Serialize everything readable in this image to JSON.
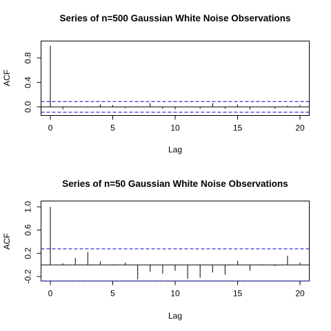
{
  "chart_data": [
    {
      "type": "bar",
      "title": "Series of n=500 Gaussian White Noise Observations",
      "xlabel": "Lag",
      "ylabel": "ACF",
      "x_ticks": [
        "0",
        "5",
        "10",
        "15",
        "20"
      ],
      "y_ticks": [
        "0.0",
        "0.4",
        "0.8"
      ],
      "xlim": [
        0,
        20
      ],
      "ylim": [
        -0.05,
        1.0
      ],
      "ci": 0.088,
      "lags": [
        0,
        1,
        2,
        3,
        4,
        5,
        6,
        7,
        8,
        9,
        10,
        11,
        12,
        13,
        14,
        15,
        16,
        17,
        18,
        19,
        20
      ],
      "values": [
        1.0,
        -0.04,
        0.005,
        -0.01,
        0.04,
        0.03,
        -0.02,
        0.01,
        0.06,
        -0.03,
        -0.04,
        0.005,
        -0.03,
        0.06,
        -0.03,
        0.04,
        -0.04,
        0.005,
        -0.03,
        0.02,
        0.03
      ],
      "grid": false
    },
    {
      "type": "bar",
      "title": "Series of n=50 Gaussian White Noise Observations",
      "xlabel": "Lag",
      "ylabel": "ACF",
      "x_ticks": [
        "0",
        "5",
        "10",
        "15",
        "20"
      ],
      "y_ticks": [
        "-0.2",
        "0.2",
        "0.6",
        "1.0"
      ],
      "xlim": [
        0,
        20
      ],
      "ylim": [
        -0.28,
        1.0
      ],
      "ci": 0.277,
      "lags": [
        0,
        1,
        2,
        3,
        4,
        5,
        6,
        7,
        8,
        9,
        10,
        11,
        12,
        13,
        14,
        15,
        16,
        17,
        18,
        19,
        20
      ],
      "values": [
        1.0,
        0.03,
        0.12,
        0.22,
        0.06,
        0.01,
        0.04,
        -0.25,
        -0.12,
        -0.15,
        -0.1,
        -0.24,
        -0.22,
        -0.13,
        -0.17,
        0.07,
        -0.1,
        0.01,
        -0.02,
        0.16,
        0.04
      ],
      "grid": false
    }
  ]
}
